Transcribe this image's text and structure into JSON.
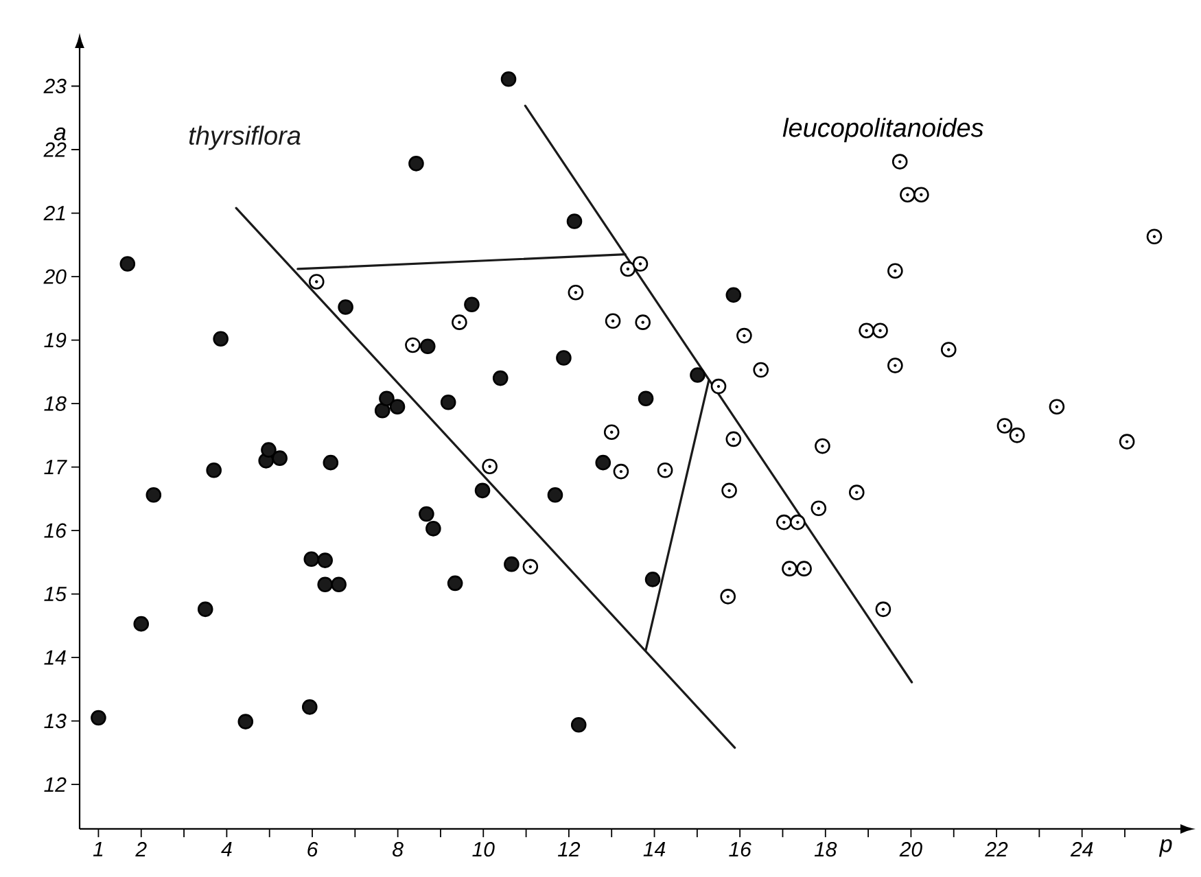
{
  "chart_data": {
    "type": "scatter",
    "xlabel": "p",
    "ylabel": "a",
    "xlim": [
      0.56,
      26.3
    ],
    "ylim": [
      11.3,
      23.6
    ],
    "xticks": [
      1,
      2,
      {
        "value": 3,
        "label": null
      },
      4,
      {
        "value": 5,
        "label": null
      },
      6,
      {
        "value": 7,
        "label": null
      },
      8,
      {
        "value": 9,
        "label": null
      },
      10,
      {
        "value": 11,
        "label": null
      },
      12,
      {
        "value": 13,
        "label": null
      },
      14,
      {
        "value": 15,
        "label": null
      },
      16,
      {
        "value": 17,
        "label": null
      },
      18,
      {
        "value": 19,
        "label": null
      },
      20,
      {
        "value": 21,
        "label": null
      },
      22,
      {
        "value": 23,
        "label": null
      },
      24,
      {
        "value": 25,
        "label": null
      }
    ],
    "yticks": [
      12,
      13,
      14,
      15,
      16,
      17,
      18,
      19,
      20,
      21,
      22,
      23
    ],
    "series": [
      {
        "name": "thyrsiflora",
        "type": "scatter",
        "color": "#1a1a1a",
        "marker": "circle",
        "x": [
          1.0,
          1.68,
          2.0,
          2.29,
          3.5,
          3.7,
          3.86,
          4.44,
          4.92,
          4.98,
          5.24,
          6.43,
          5.94,
          5.98,
          6.3,
          6.3,
          6.62,
          6.78,
          7.64,
          7.74,
          7.99,
          8.43,
          9.73,
          8.7,
          10.4,
          9.18,
          10.59,
          12.13,
          11.88,
          13.8,
          15.01,
          15.85,
          12.8,
          9.98,
          11.68,
          8.67,
          8.83,
          10.66,
          9.34,
          13.96,
          12.23
        ],
        "values": [
          13.05,
          20.2,
          14.53,
          16.56,
          14.76,
          16.95,
          19.02,
          12.99,
          17.1,
          17.27,
          17.14,
          17.07,
          13.22,
          15.55,
          15.53,
          15.15,
          15.15,
          19.52,
          17.89,
          18.08,
          17.95,
          21.78,
          19.56,
          18.9,
          18.4,
          18.02,
          23.11,
          20.87,
          18.72,
          18.08,
          18.45,
          19.71,
          17.07,
          16.63,
          16.56,
          16.26,
          16.03,
          15.47,
          15.17,
          15.23,
          12.94
        ]
      },
      {
        "name": "leucopolitanoides",
        "type": "scatter",
        "color": "#ffffff",
        "marker": "circle",
        "x": [
          6.1,
          8.35,
          9.44,
          12.16,
          13.38,
          13.67,
          13.03,
          13.73,
          16.1,
          16.49,
          15.5,
          13.0,
          15.85,
          10.15,
          13.22,
          14.25,
          15.75,
          17.03,
          17.35,
          17.16,
          17.5,
          11.1,
          15.72,
          17.84,
          18.73,
          19.35,
          19.74,
          19.92,
          20.24,
          19.63,
          18.96,
          19.28,
          20.88,
          19.63,
          23.41,
          22.19,
          22.48,
          25.05,
          17.93,
          25.69
        ],
        "values": [
          19.92,
          18.92,
          19.28,
          19.75,
          20.12,
          20.2,
          19.3,
          19.28,
          19.07,
          18.53,
          18.27,
          17.55,
          17.44,
          17.01,
          16.93,
          16.95,
          16.63,
          16.13,
          16.13,
          15.4,
          15.4,
          15.43,
          14.96,
          16.35,
          16.6,
          14.76,
          21.81,
          21.29,
          21.29,
          20.09,
          19.15,
          19.15,
          18.85,
          18.6,
          17.95,
          17.65,
          17.5,
          17.4,
          17.33,
          20.63
        ]
      },
      {
        "type": "line",
        "color": "#1a1a1a",
        "marker": "none",
        "line_style": "solid",
        "x": [
          4.22,
          15.88
        ],
        "values": [
          21.08,
          12.58
        ]
      },
      {
        "type": "line",
        "color": "#1a1a1a",
        "marker": "none",
        "line_style": "solid",
        "x": [
          5.66,
          13.32
        ],
        "values": [
          20.12,
          20.35
        ]
      },
      {
        "type": "line",
        "color": "#1a1a1a",
        "marker": "none",
        "line_style": "solid",
        "x": [
          10.98,
          20.02
        ],
        "values": [
          22.69,
          13.61
        ]
      },
      {
        "type": "line",
        "color": "#1a1a1a",
        "marker": "none",
        "line_style": "solid",
        "x": [
          13.8,
          15.27
        ],
        "values": [
          14.12,
          18.36
        ]
      }
    ]
  }
}
